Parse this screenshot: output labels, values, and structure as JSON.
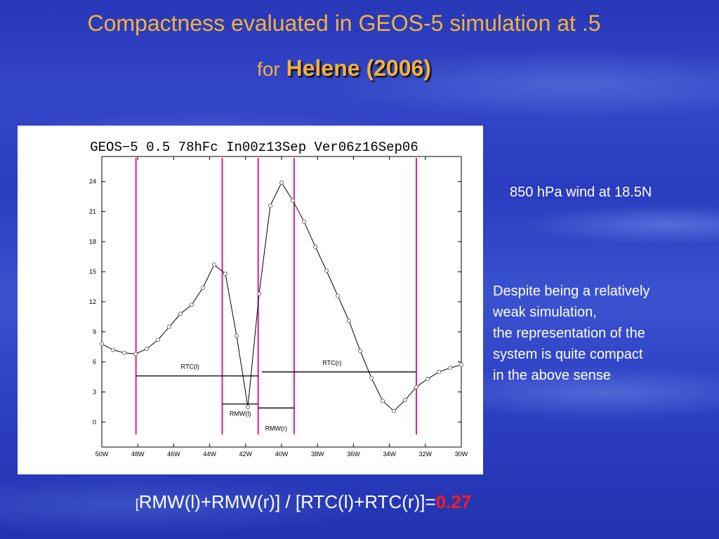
{
  "slide": {
    "title_line1": "Compactness evaluated in GEOS-5 simulation at .5",
    "title_for": "for",
    "title_storm": "Helene (2006)",
    "note1": "850 hPa wind at 18.5N",
    "note2_lines": [
      "Despite being a relatively",
      "weak simulation,",
      "the representation of the",
      "system is quite compact",
      "in the above sense"
    ],
    "formula_open": "[",
    "formula_body": "RMW(l)+RMW(r)] / [RTC(l)+RTC(r)]=",
    "formula_result": "0.27",
    "colors": {
      "title": "#f2b23a",
      "result": "#ff1a1a",
      "vlines": "#e0208a"
    }
  },
  "chart_data": {
    "type": "line",
    "title": "GEOS−5 0.5 78hFc In00z13Sep Ver06z16Sep06",
    "xlim": [
      -50,
      -30
    ],
    "ylim": [
      -2.5,
      26.5
    ],
    "x_ticks": [
      -50,
      -48,
      -46,
      -44,
      -42,
      -40,
      -38,
      -36,
      -34,
      -32,
      -30
    ],
    "x_tick_labels": [
      "50W",
      "48W",
      "46W",
      "44W",
      "42W",
      "40W",
      "38W",
      "36W",
      "34W",
      "32W",
      "30W"
    ],
    "y_ticks": [
      0,
      3,
      6,
      9,
      12,
      15,
      18,
      21,
      24
    ],
    "series": [
      {
        "x": [
          -50,
          -49.375,
          -48.75,
          -48.125,
          -47.5,
          -46.875,
          -46.25,
          -45.625,
          -45,
          -44.375,
          -43.75,
          -43.125,
          -42.5,
          -41.875,
          -41.25,
          -40.625,
          -40,
          -39.375,
          -38.75,
          -38.125,
          -37.5,
          -36.875,
          -36.25,
          -35.625,
          -35,
          -34.375,
          -33.75,
          -33.125,
          -32.5,
          -31.875,
          -31.25,
          -30.625,
          -30
        ],
        "values": [
          7.8,
          7.2,
          6.9,
          6.8,
          7.3,
          8.2,
          9.5,
          10.8,
          11.7,
          13.4,
          15.7,
          14.8,
          8.6,
          1.5,
          12.8,
          21.6,
          23.9,
          22.1,
          20.0,
          17.5,
          15.1,
          12.6,
          10.1,
          7.1,
          4.4,
          2.1,
          1.1,
          2.2,
          3.5,
          4.3,
          5.0,
          5.4,
          5.7
        ]
      }
    ],
    "vertical_lines_x": [
      -48.1,
      -43.3,
      -41.3,
      -39.3,
      -32.5
    ],
    "annotations": [
      {
        "label": "RTC(l)",
        "x1": -48.1,
        "x2": -41.3,
        "y": 4.6
      },
      {
        "label": "RTC(r)",
        "x1": -41.1,
        "x2": -32.5,
        "y": 5.0
      },
      {
        "label": "RMW(l)",
        "x1": -43.3,
        "x2": -41.3,
        "y": 1.8
      },
      {
        "label": "RMW(r)",
        "x1": -41.3,
        "x2": -39.3,
        "y": 1.4
      }
    ]
  }
}
